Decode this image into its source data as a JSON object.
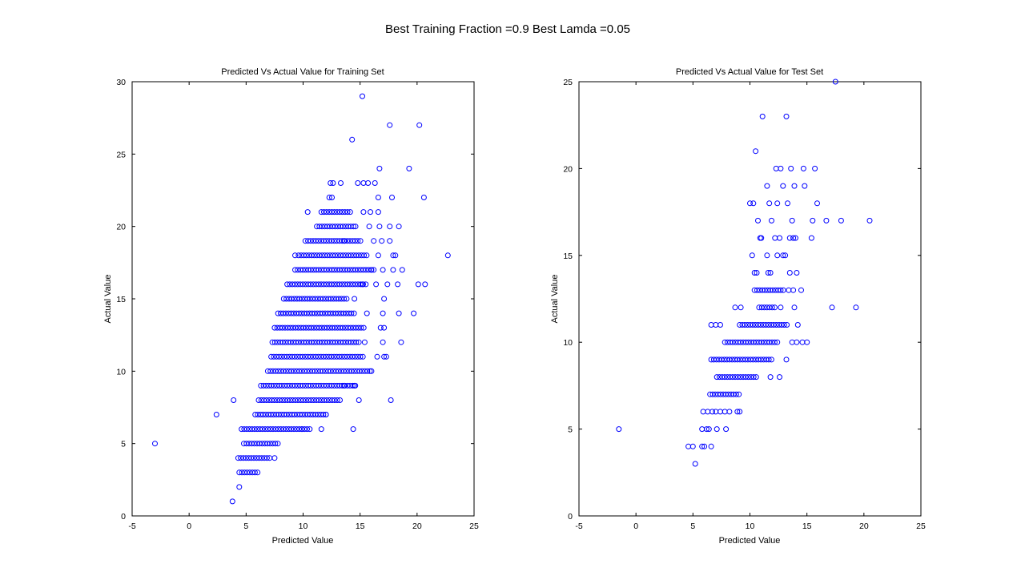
{
  "figure": {
    "suptitle": "Best Training Fraction =0.9 Best Lamda =0.05"
  },
  "colors": {
    "marker": "#0000ff",
    "axes": "#000000",
    "background": "#ffffff"
  },
  "chart_data": [
    {
      "type": "scatter",
      "title": "Predicted Vs Actual Value for Training Set",
      "xlabel": "Predicted Value",
      "ylabel": "Actual Value",
      "xlim": [
        -5,
        25
      ],
      "ylim": [
        0,
        30
      ],
      "xticks": [
        -5,
        0,
        5,
        10,
        15,
        20,
        25
      ],
      "yticks": [
        0,
        5,
        10,
        15,
        20,
        25,
        30
      ],
      "grid": false,
      "marker": "open-circle",
      "bands": [
        {
          "y": 2,
          "x": [
            4.4
          ]
        },
        {
          "y": 3,
          "x": [
            4.4,
            6.1
          ]
        },
        {
          "y": 4,
          "x": [
            4.3,
            7.2
          ]
        },
        {
          "y": 5,
          "x": [
            4.8,
            7.9
          ]
        },
        {
          "y": 6,
          "x": [
            4.6,
            10.6
          ]
        },
        {
          "y": 7,
          "x": [
            5.8,
            12.1
          ]
        },
        {
          "y": 8,
          "x": [
            6.1,
            13.4
          ]
        },
        {
          "y": 9,
          "x": [
            6.3,
            14.8
          ]
        },
        {
          "y": 10,
          "x": [
            6.9,
            15.9
          ]
        },
        {
          "y": 11,
          "x": [
            7.2,
            15.4
          ]
        },
        {
          "y": 12,
          "x": [
            7.3,
            15.1
          ]
        },
        {
          "y": 13,
          "x": [
            7.5,
            15.4
          ]
        },
        {
          "y": 14,
          "x": [
            7.8,
            14.5
          ]
        },
        {
          "y": 15,
          "x": [
            8.3,
            13.9
          ]
        },
        {
          "y": 16,
          "x": [
            8.6,
            15.7
          ]
        },
        {
          "y": 17,
          "x": [
            9.3,
            16.2
          ]
        },
        {
          "y": 18,
          "x": [
            9.6,
            15.7
          ]
        },
        {
          "y": 19,
          "x": [
            10.2,
            15.2
          ]
        },
        {
          "y": 20,
          "x": [
            11.2,
            14.5
          ]
        },
        {
          "y": 21,
          "x": [
            11.6,
            14.3
          ]
        },
        {
          "y": 22,
          "x": [
            12.3,
            12.6
          ]
        },
        {
          "y": 23,
          "x": [
            12.4,
            12.7
          ]
        }
      ],
      "points": [
        [
          3.8,
          1
        ],
        [
          -3,
          5
        ],
        [
          2.4,
          7
        ],
        [
          3.9,
          8
        ],
        [
          14.4,
          6
        ],
        [
          7.5,
          4
        ],
        [
          9.9,
          6
        ],
        [
          11.6,
          6
        ],
        [
          12.0,
          7
        ],
        [
          14.9,
          8
        ],
        [
          17.7,
          8
        ],
        [
          13.6,
          9
        ],
        [
          14.5,
          9
        ],
        [
          16.0,
          10
        ],
        [
          16.5,
          11
        ],
        [
          17.1,
          11
        ],
        [
          17.3,
          11
        ],
        [
          15.4,
          12
        ],
        [
          17.0,
          12
        ],
        [
          18.6,
          12
        ],
        [
          17.1,
          13
        ],
        [
          16.8,
          13
        ],
        [
          15.6,
          14
        ],
        [
          17.0,
          14
        ],
        [
          18.4,
          14
        ],
        [
          19.7,
          14
        ],
        [
          14.5,
          15
        ],
        [
          17.1,
          15
        ],
        [
          15.2,
          16
        ],
        [
          16.4,
          16
        ],
        [
          17.4,
          16
        ],
        [
          18.3,
          16
        ],
        [
          20.1,
          16
        ],
        [
          20.7,
          16
        ],
        [
          16.0,
          17
        ],
        [
          17.0,
          17
        ],
        [
          17.9,
          17
        ],
        [
          18.7,
          17
        ],
        [
          9.3,
          18
        ],
        [
          16.6,
          18
        ],
        [
          17.9,
          18
        ],
        [
          18.1,
          18
        ],
        [
          22.7,
          18
        ],
        [
          13.6,
          19
        ],
        [
          16.2,
          19
        ],
        [
          16.9,
          19
        ],
        [
          17.6,
          19
        ],
        [
          14.6,
          20
        ],
        [
          15.8,
          20
        ],
        [
          16.7,
          20
        ],
        [
          17.6,
          20
        ],
        [
          18.4,
          20
        ],
        [
          10.4,
          21
        ],
        [
          15.3,
          21
        ],
        [
          15.9,
          21
        ],
        [
          16.6,
          21
        ],
        [
          16.6,
          22
        ],
        [
          17.8,
          22
        ],
        [
          20.6,
          22
        ],
        [
          13.3,
          23
        ],
        [
          14.8,
          23
        ],
        [
          15.3,
          23
        ],
        [
          15.7,
          23
        ],
        [
          16.3,
          23
        ],
        [
          16.7,
          24
        ],
        [
          19.3,
          24
        ],
        [
          14.3,
          26
        ],
        [
          17.6,
          27
        ],
        [
          20.2,
          27
        ],
        [
          15.2,
          29
        ]
      ]
    },
    {
      "type": "scatter",
      "title": "Predicted Vs Actual Value for Test Set",
      "xlabel": "Predicted Value",
      "ylabel": "Actual Value",
      "xlim": [
        -5,
        25
      ],
      "ylim": [
        0,
        25
      ],
      "xticks": [
        -5,
        0,
        5,
        10,
        15,
        20,
        25
      ],
      "yticks": [
        0,
        5,
        10,
        15,
        20,
        25
      ],
      "grid": false,
      "marker": "open-circle",
      "bands": [
        {
          "y": 7,
          "x": [
            6.5,
            9.2
          ]
        },
        {
          "y": 8,
          "x": [
            7.1,
            10.6
          ]
        },
        {
          "y": 9,
          "x": [
            6.6,
            12.0
          ]
        },
        {
          "y": 10,
          "x": [
            7.8,
            12.6
          ]
        },
        {
          "y": 11,
          "x": [
            9.1,
            13.3
          ]
        },
        {
          "y": 12,
          "x": [
            10.8,
            12.2
          ]
        },
        {
          "y": 13,
          "x": [
            10.4,
            13.1
          ]
        }
      ],
      "points": [
        [
          -1.5,
          5
        ],
        [
          5.2,
          3
        ],
        [
          4.6,
          4
        ],
        [
          5.0,
          4
        ],
        [
          5.8,
          4
        ],
        [
          6.0,
          4
        ],
        [
          6.6,
          4
        ],
        [
          5.8,
          5
        ],
        [
          6.2,
          5
        ],
        [
          6.4,
          5
        ],
        [
          7.1,
          5
        ],
        [
          7.9,
          5
        ],
        [
          5.9,
          6
        ],
        [
          6.3,
          6
        ],
        [
          6.7,
          6
        ],
        [
          7.0,
          6
        ],
        [
          7.4,
          6
        ],
        [
          7.8,
          6
        ],
        [
          8.2,
          6
        ],
        [
          8.9,
          6
        ],
        [
          9.1,
          6
        ],
        [
          11.8,
          8
        ],
        [
          12.6,
          8
        ],
        [
          13.2,
          9
        ],
        [
          13.7,
          10
        ],
        [
          14.1,
          10
        ],
        [
          14.6,
          10
        ],
        [
          15.0,
          10
        ],
        [
          6.6,
          11
        ],
        [
          7.0,
          11
        ],
        [
          7.4,
          11
        ],
        [
          14.2,
          11
        ],
        [
          8.7,
          12
        ],
        [
          9.2,
          12
        ],
        [
          12.7,
          12
        ],
        [
          13.9,
          12
        ],
        [
          17.2,
          12
        ],
        [
          19.3,
          12
        ],
        [
          13.4,
          13
        ],
        [
          13.8,
          13
        ],
        [
          14.5,
          13
        ],
        [
          10.4,
          14
        ],
        [
          10.6,
          14
        ],
        [
          11.6,
          14
        ],
        [
          11.8,
          14
        ],
        [
          13.5,
          14
        ],
        [
          14.1,
          14
        ],
        [
          10.2,
          15
        ],
        [
          11.5,
          15
        ],
        [
          12.4,
          15
        ],
        [
          12.9,
          15
        ],
        [
          13.1,
          15
        ],
        [
          10.9,
          16
        ],
        [
          11.0,
          16
        ],
        [
          12.2,
          16
        ],
        [
          12.6,
          16
        ],
        [
          13.5,
          16
        ],
        [
          13.8,
          16
        ],
        [
          14.0,
          16
        ],
        [
          15.4,
          16
        ],
        [
          10.7,
          17
        ],
        [
          11.9,
          17
        ],
        [
          13.7,
          17
        ],
        [
          15.5,
          17
        ],
        [
          16.7,
          17
        ],
        [
          18.0,
          17
        ],
        [
          20.5,
          17
        ],
        [
          10.0,
          18
        ],
        [
          10.3,
          18
        ],
        [
          11.7,
          18
        ],
        [
          12.4,
          18
        ],
        [
          13.3,
          18
        ],
        [
          15.9,
          18
        ],
        [
          11.5,
          19
        ],
        [
          12.9,
          19
        ],
        [
          13.9,
          19
        ],
        [
          14.8,
          19
        ],
        [
          12.3,
          20
        ],
        [
          12.7,
          20
        ],
        [
          13.6,
          20
        ],
        [
          14.7,
          20
        ],
        [
          15.7,
          20
        ],
        [
          10.5,
          21
        ],
        [
          11.1,
          23
        ],
        [
          13.2,
          23
        ],
        [
          17.5,
          25
        ]
      ]
    }
  ]
}
